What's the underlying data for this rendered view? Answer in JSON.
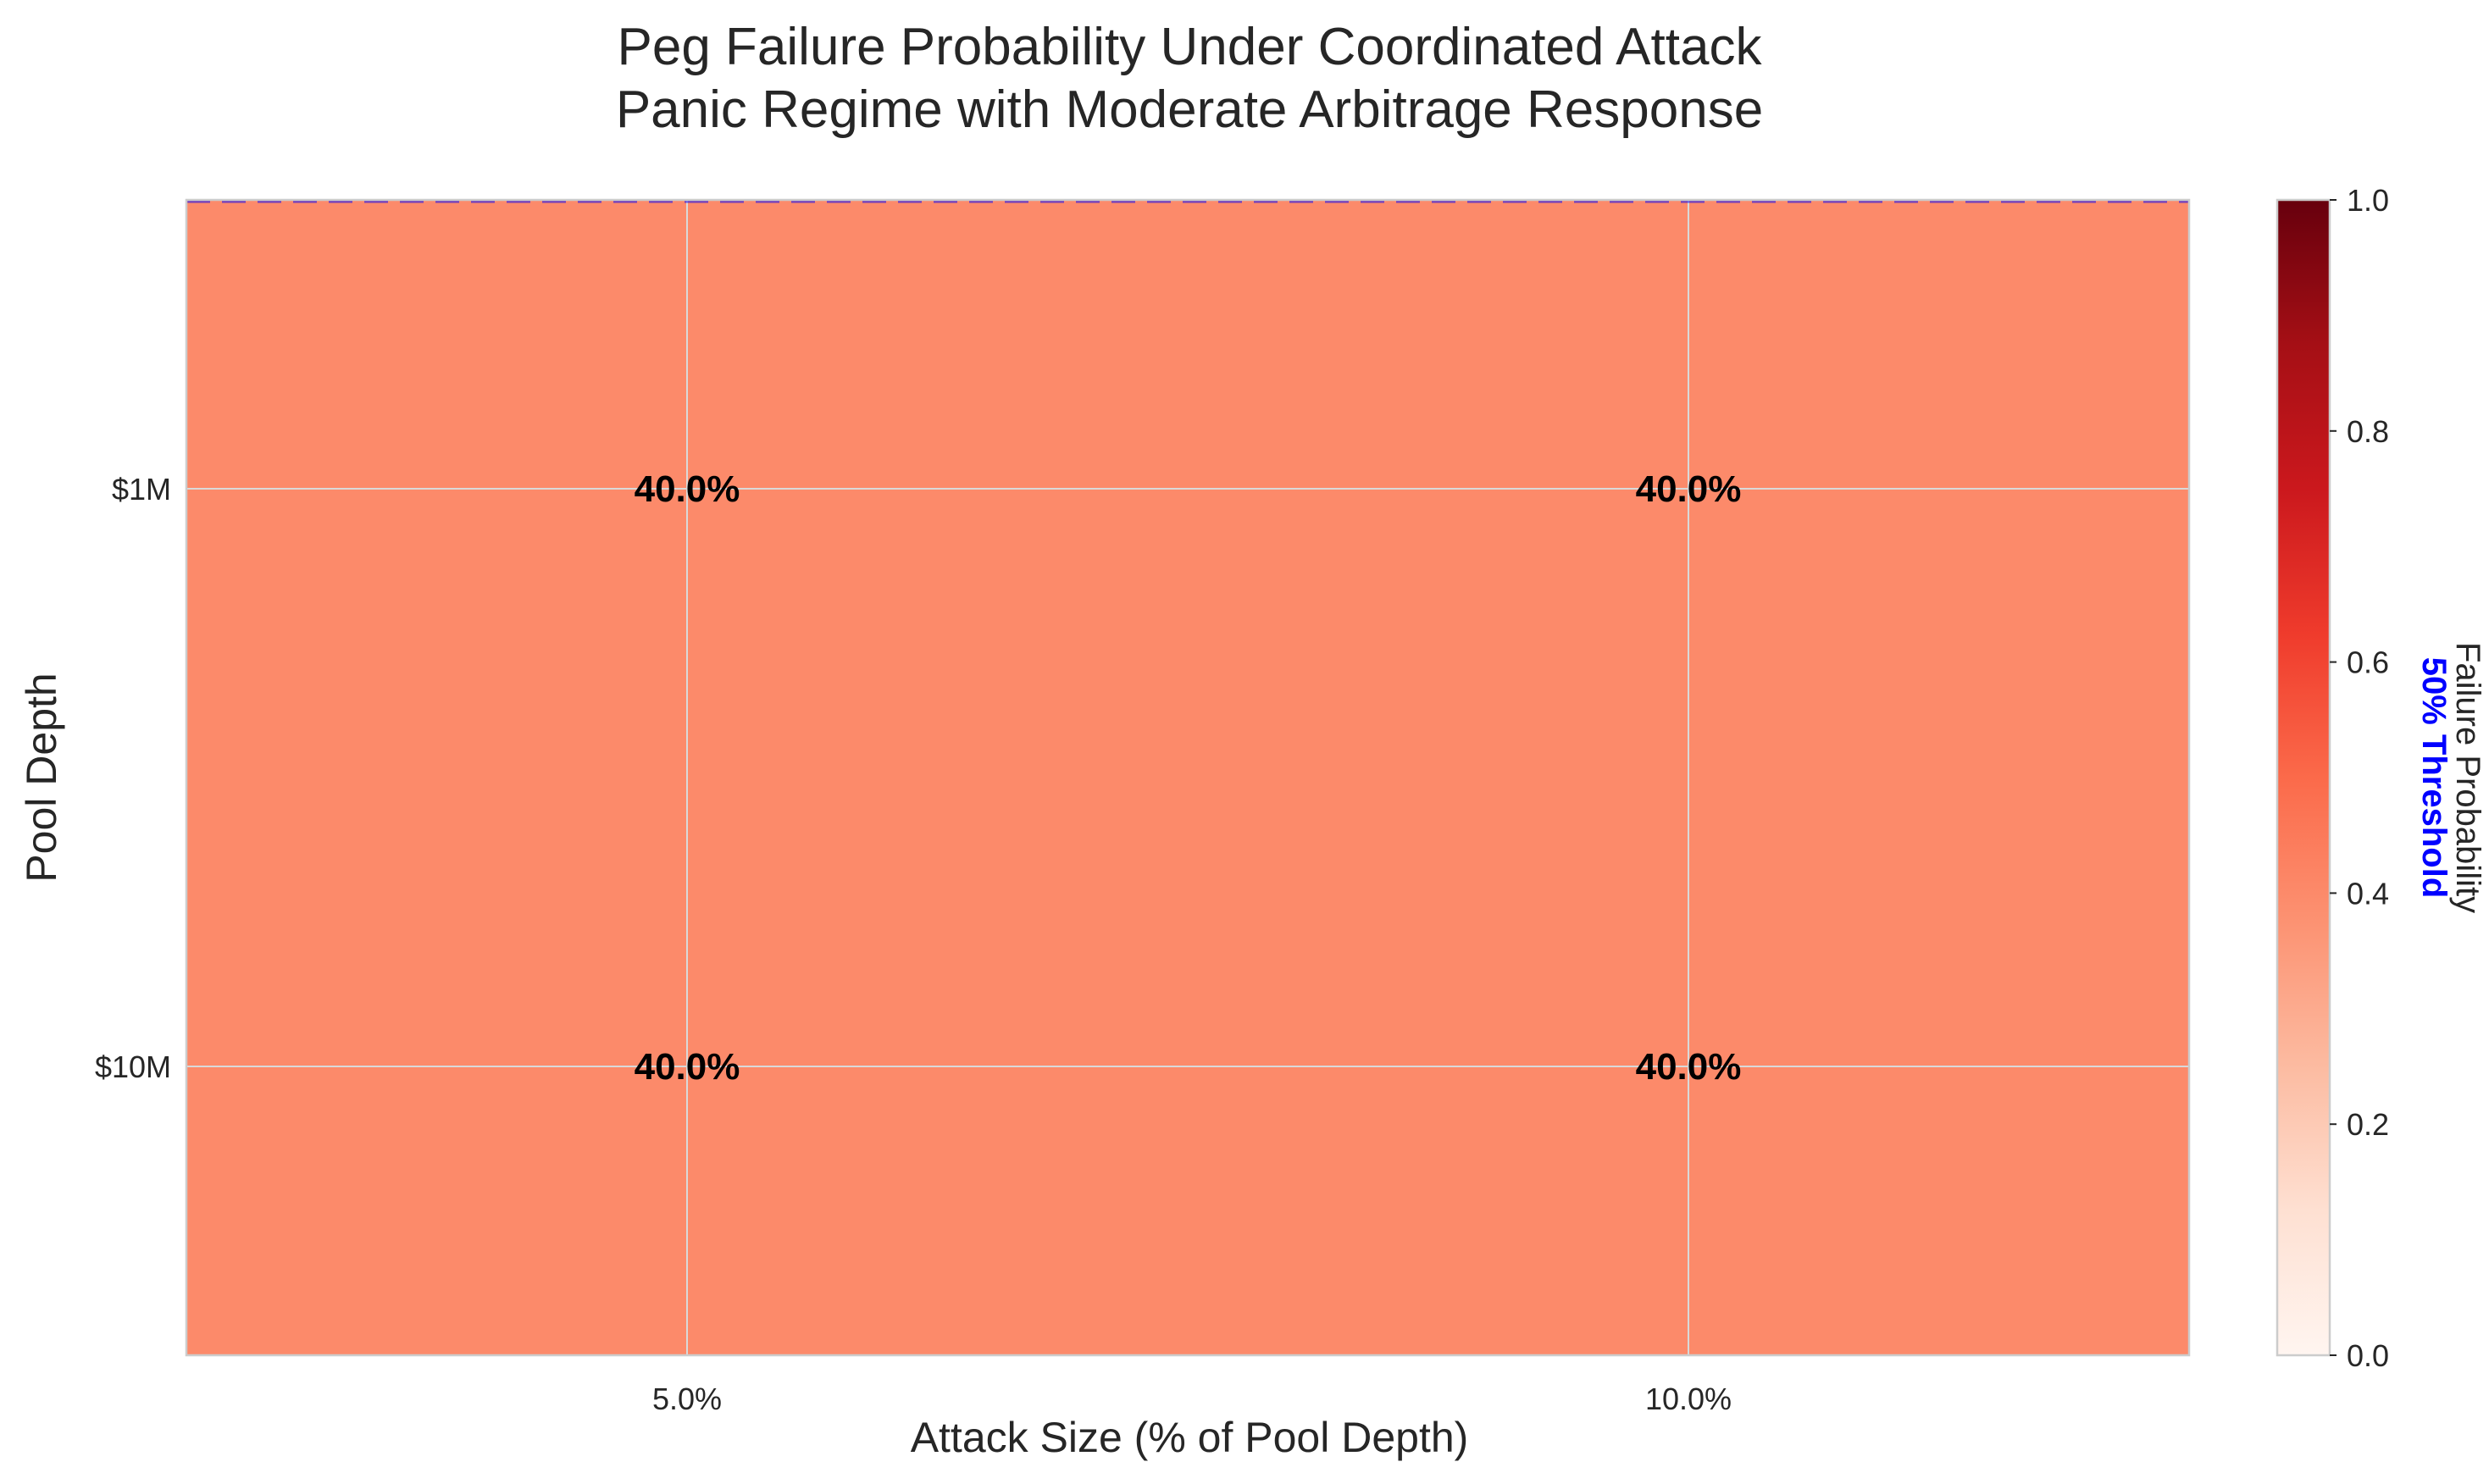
{
  "chart_data": {
    "type": "heatmap",
    "title": "Peg Failure Probability Under Coordinated Attack",
    "subtitle": "Panic Regime with Moderate Arbitrage Response",
    "xlabel": "Attack Size (% of Pool Depth)",
    "ylabel": "Pool Depth",
    "x_categories": [
      "5.0%",
      "10.0%"
    ],
    "y_categories": [
      "$1M",
      "$10M"
    ],
    "values": [
      [
        0.4,
        0.4
      ],
      [
        0.4,
        0.4
      ]
    ],
    "cell_labels": [
      [
        "40.0%",
        "40.0%"
      ],
      [
        "40.0%",
        "40.0%"
      ]
    ],
    "grid": true,
    "colorbar": {
      "label": "Failure Probability",
      "range": [
        0.0,
        1.0
      ],
      "ticks": [
        "0.0",
        "0.2",
        "0.4",
        "0.6",
        "0.8",
        "1.0"
      ],
      "colormap": [
        "#fff5f0",
        "#fee0d2",
        "#fcbba1",
        "#fc9272",
        "#fb6a4a",
        "#ef3b2c",
        "#cb181d",
        "#a50f15",
        "#67000d"
      ]
    },
    "threshold": {
      "value": 0.5,
      "label": "50% Threshold",
      "color": "#0000ff"
    }
  }
}
